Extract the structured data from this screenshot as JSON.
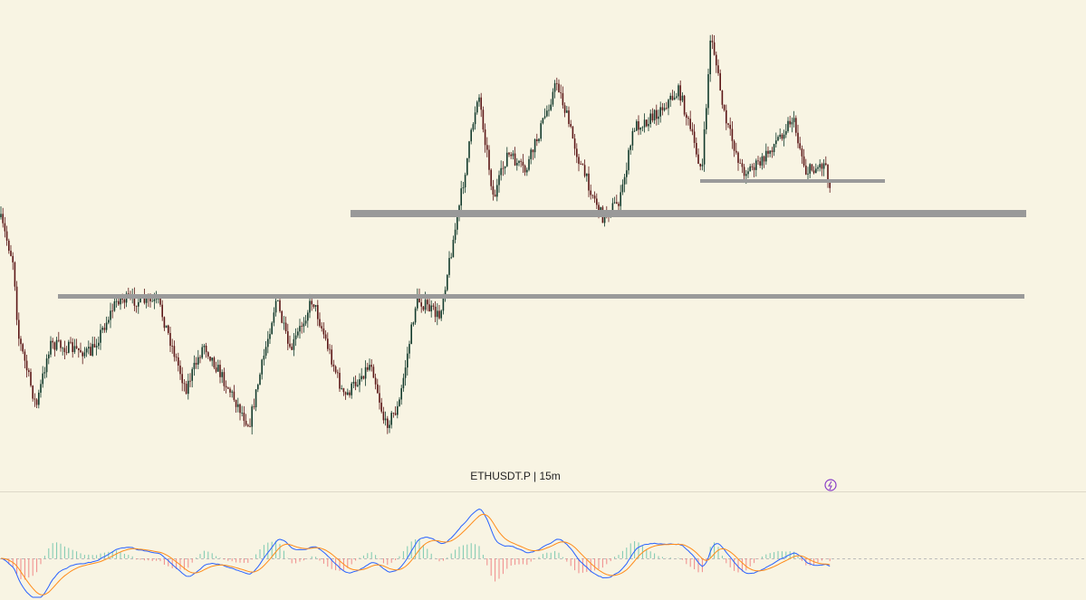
{
  "chart_label": "ETHUSDT.P | 15m"
}
